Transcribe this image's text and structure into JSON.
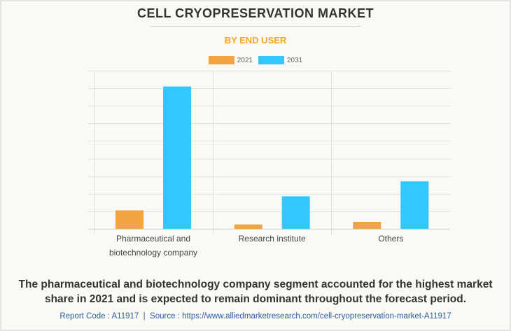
{
  "header": {
    "title": "CELL CRYOPRESERVATION MARKET",
    "subtitle": "BY END USER",
    "subtitle_color": "#f5a623"
  },
  "chart_data": {
    "type": "bar",
    "title": "CELL CRYOPRESERVATION MARKET",
    "subtitle": "BY END USER",
    "xlabel": "",
    "ylabel": "",
    "y_tick_labels_visible": false,
    "ylim": [
      0,
      9
    ],
    "grid": true,
    "legend_position": "top-center",
    "categories": [
      "Pharmaceutical and biotechnology company",
      "Research institute",
      "Others"
    ],
    "category_label_lines": [
      [
        "Pharmaceutical and",
        "biotechnology company"
      ],
      [
        "Research institute"
      ],
      [
        "Others"
      ]
    ],
    "series": [
      {
        "name": "2021",
        "color": "#f2a444",
        "values": [
          1.05,
          0.25,
          0.4
        ]
      },
      {
        "name": "2031",
        "color": "#33c7ff",
        "values": [
          8.1,
          1.85,
          2.7
        ]
      }
    ],
    "value_units": "relative (gridline units; axis unlabeled)"
  },
  "footer": {
    "caption_line1": "The pharmaceutical and biotechnology company segment accounted for the highest market",
    "caption_line2": "share in 2021 and is expected to remain dominant throughout the forecast period.",
    "source": "Report Code : A11917  |  Source : https://www.alliedmarketresearch.com/cell-cryopreservation-market-A11917"
  }
}
